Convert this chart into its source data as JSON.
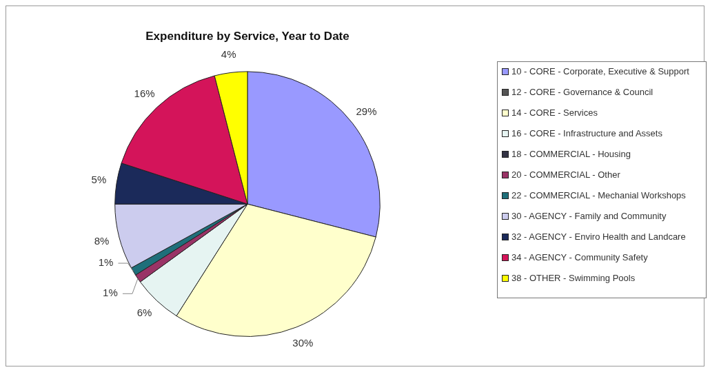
{
  "chart_data": {
    "type": "pie",
    "title": "Expenditure by Service, Year to Date",
    "categories": [
      "10 - CORE - Corporate, Executive & Support",
      "12 - CORE - Governance & Council",
      "14 - CORE - Services",
      "16 - CORE - Infrastructure and Assets",
      "18 - COMMERCIAL - Housing",
      "20 - COMMERCIAL - Other",
      "22 - COMMERCIAL - Mechanial Workshops",
      "30 - AGENCY - Family and Community",
      "32 - AGENCY - Enviro Health and Landcare",
      "34 - AGENCY - Community Safety",
      "38 - OTHER - Swimming Pools"
    ],
    "values": [
      29,
      0,
      30,
      6,
      0,
      1,
      1,
      8,
      5,
      16,
      4
    ],
    "value_labels": [
      "29%",
      null,
      "30%",
      "6%",
      null,
      "1%",
      "1%",
      "8%",
      "5%",
      "16%",
      "4%"
    ],
    "colors": [
      "#9999ff",
      "#555555",
      "#ffffcc",
      "#e6f4f2",
      "#333344",
      "#993366",
      "#1f6f7a",
      "#ccccee",
      "#1b2a5a",
      "#d4145a",
      "#ffff00"
    ],
    "legend": "right"
  }
}
